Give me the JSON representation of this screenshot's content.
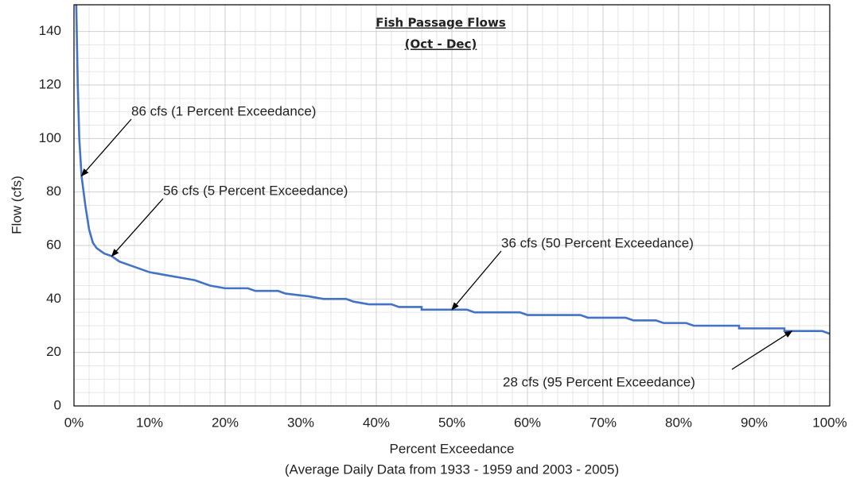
{
  "chart_data": {
    "type": "line",
    "title": "Fish Passage Flows",
    "subtitle": "(Oct - Dec)",
    "x_label": "Percent Exceedance",
    "x_label_note": "(Average Daily Data from 1933 - 1959 and 2003 - 2005)",
    "y_label": "Flow (cfs)",
    "xlim": [
      0,
      100
    ],
    "ylim": [
      0,
      150
    ],
    "xticks": [
      {
        "value": 0,
        "label": "0%"
      },
      {
        "value": 10,
        "label": "10%"
      },
      {
        "value": 20,
        "label": "20%"
      },
      {
        "value": 30,
        "label": "30%"
      },
      {
        "value": 40,
        "label": "40%"
      },
      {
        "value": 50,
        "label": "50%"
      },
      {
        "value": 60,
        "label": "60%"
      },
      {
        "value": 70,
        "label": "70%"
      },
      {
        "value": 80,
        "label": "80%"
      },
      {
        "value": 90,
        "label": "90%"
      },
      {
        "value": 100,
        "label": "100%"
      }
    ],
    "yticks": [
      0,
      20,
      40,
      60,
      80,
      100,
      120,
      140
    ],
    "grid": true,
    "series": [
      {
        "color": "#4472c4",
        "x": [
          0.3,
          0.5,
          0.7,
          1,
          1.5,
          2,
          2.5,
          3,
          4,
          5,
          6,
          8,
          10,
          12,
          14,
          16,
          18,
          20,
          23,
          24,
          27,
          28,
          31,
          33,
          36,
          37,
          39,
          42,
          43,
          46,
          46,
          52,
          53,
          59,
          60,
          67,
          68,
          73,
          74,
          77,
          78,
          81,
          82,
          88,
          88,
          94,
          94,
          99,
          100
        ],
        "values": [
          150,
          120,
          100,
          86,
          75,
          66,
          61,
          59,
          57,
          56,
          54,
          52,
          50,
          49,
          48,
          47,
          45,
          44,
          44,
          43,
          43,
          42,
          41,
          40,
          40,
          39,
          38,
          38,
          37,
          37,
          36,
          36,
          35,
          35,
          34,
          34,
          33,
          33,
          32,
          32,
          31,
          31,
          30,
          30,
          29,
          29,
          28,
          28,
          27
        ]
      }
    ],
    "annotations": [
      {
        "text": "86 cfs (1 Percent Exceedance)",
        "x": 1,
        "y": 86
      },
      {
        "text": "56 cfs (5 Percent Exceedance)",
        "x": 5,
        "y": 56
      },
      {
        "text": "36 cfs (50 Percent Exceedance)",
        "x": 50,
        "y": 36
      },
      {
        "text": "28 cfs (95 Percent Exceedance)",
        "x": 95,
        "y": 28
      }
    ]
  }
}
